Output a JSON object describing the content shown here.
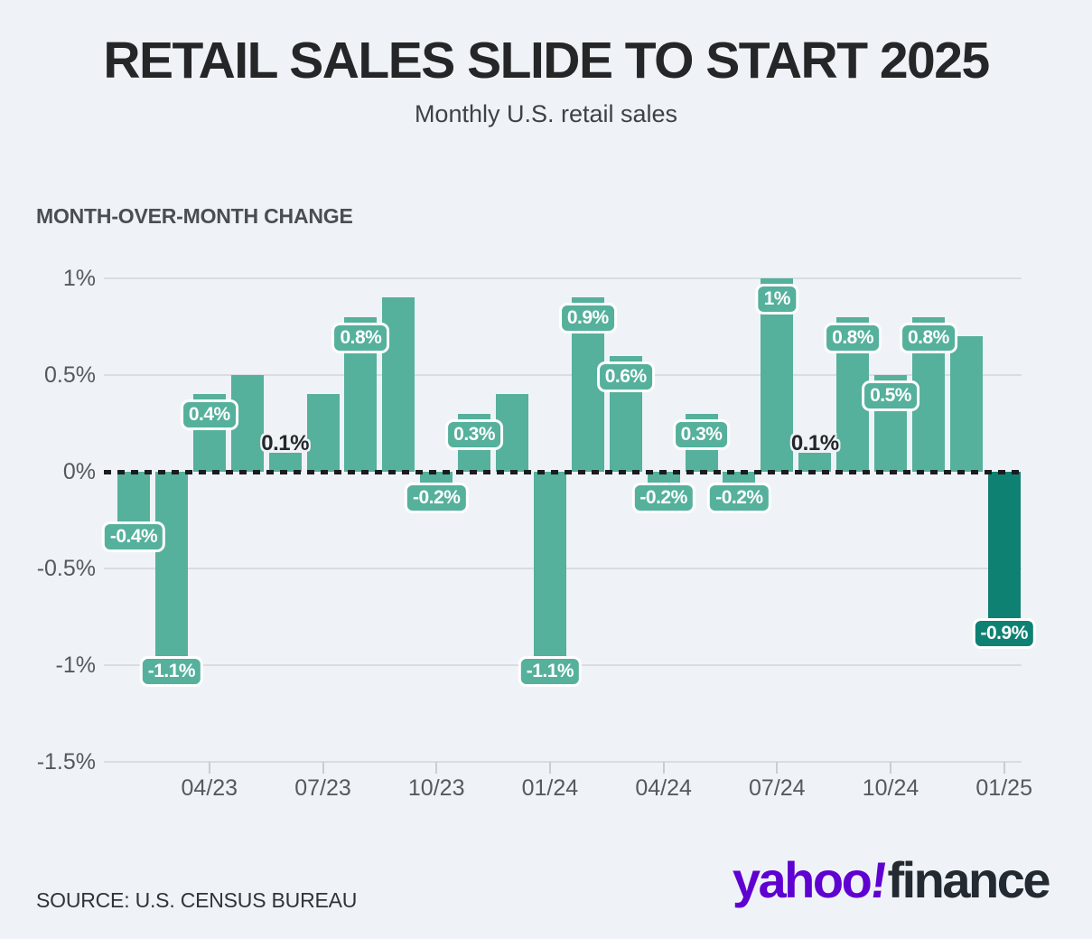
{
  "page": {
    "background_color": "#eff3f7"
  },
  "chart_data": {
    "type": "bar",
    "title": "RETAIL SALES SLIDE TO START 2025",
    "subtitle": "Monthly U.S. retail sales",
    "ylabel": "MONTH-OVER-MONTH CHANGE",
    "unit": "%",
    "ylim": [
      -1.5,
      1
    ],
    "grid": "horizontal",
    "legend": "none",
    "zero_baseline": "black dashed line at 0%",
    "y_ticks": [
      {
        "value": 1,
        "label": "1%"
      },
      {
        "value": 0.5,
        "label": "0.5%"
      },
      {
        "value": 0,
        "label": "0%"
      },
      {
        "value": -0.5,
        "label": "-0.5%"
      },
      {
        "value": -1,
        "label": "-1%"
      },
      {
        "value": -1.5,
        "label": "-1.5%"
      }
    ],
    "x_ticks": [
      {
        "index": 2,
        "label": "04/23"
      },
      {
        "index": 5,
        "label": "07/23"
      },
      {
        "index": 8,
        "label": "10/23"
      },
      {
        "index": 11,
        "label": "01/24"
      },
      {
        "index": 14,
        "label": "04/24"
      },
      {
        "index": 17,
        "label": "07/24"
      },
      {
        "index": 20,
        "label": "10/24"
      },
      {
        "index": 23,
        "label": "01/25"
      }
    ],
    "points": [
      {
        "month": "02/23",
        "value": -0.4,
        "label": "-0.4%",
        "label_style": "badge"
      },
      {
        "month": "03/23",
        "value": -1.1,
        "label": "-1.1%",
        "label_style": "badge"
      },
      {
        "month": "04/23",
        "value": 0.4,
        "label": "0.4%",
        "label_style": "badge"
      },
      {
        "month": "05/23",
        "value": 0.5,
        "label": null
      },
      {
        "month": "06/23",
        "value": 0.1,
        "label": "0.1%",
        "label_style": "dark-above"
      },
      {
        "month": "07/23",
        "value": 0.4,
        "label": null
      },
      {
        "month": "08/23",
        "value": 0.8,
        "label": "0.8%",
        "label_style": "badge"
      },
      {
        "month": "09/23",
        "value": 0.9,
        "label": null
      },
      {
        "month": "10/23",
        "value": -0.2,
        "label": "-0.2%",
        "label_style": "badge"
      },
      {
        "month": "11/23",
        "value": 0.3,
        "label": "0.3%",
        "label_style": "badge"
      },
      {
        "month": "12/23",
        "value": 0.4,
        "label": null
      },
      {
        "month": "01/24",
        "value": -1.1,
        "label": "-1.1%",
        "label_style": "badge"
      },
      {
        "month": "02/24",
        "value": 0.9,
        "label": "0.9%",
        "label_style": "badge"
      },
      {
        "month": "03/24",
        "value": 0.6,
        "label": "0.6%",
        "label_style": "badge"
      },
      {
        "month": "04/24",
        "value": -0.2,
        "label": "-0.2%",
        "label_style": "badge"
      },
      {
        "month": "05/24",
        "value": 0.3,
        "label": "0.3%",
        "label_style": "badge"
      },
      {
        "month": "06/24",
        "value": -0.2,
        "label": "-0.2%",
        "label_style": "badge"
      },
      {
        "month": "07/24",
        "value": 1.0,
        "label": "1%",
        "label_style": "badge"
      },
      {
        "month": "08/24",
        "value": 0.1,
        "label": "0.1%",
        "label_style": "dark-above"
      },
      {
        "month": "09/24",
        "value": 0.8,
        "label": "0.8%",
        "label_style": "badge"
      },
      {
        "month": "10/24",
        "value": 0.5,
        "label": "0.5%",
        "label_style": "badge"
      },
      {
        "month": "11/24",
        "value": 0.8,
        "label": "0.8%",
        "label_style": "badge"
      },
      {
        "month": "12/24",
        "value": 0.7,
        "label": null
      },
      {
        "month": "01/25",
        "value": -0.9,
        "label": "-0.9%",
        "label_style": "badge",
        "highlight": true
      }
    ],
    "colors": {
      "bar": "#55b09c",
      "bar_highlight": "#0f8173",
      "grid": "#d9dde1",
      "zero_line": "#1b1c1e",
      "axis_text": "#55595d"
    }
  },
  "footer": {
    "source": "SOURCE: U.S. CENSUS BUREAU",
    "logo": {
      "yahoo": "yahoo",
      "bang": "!",
      "finance": "finance",
      "yahoo_color": "#5f01d1",
      "finance_color": "#232a31"
    }
  }
}
